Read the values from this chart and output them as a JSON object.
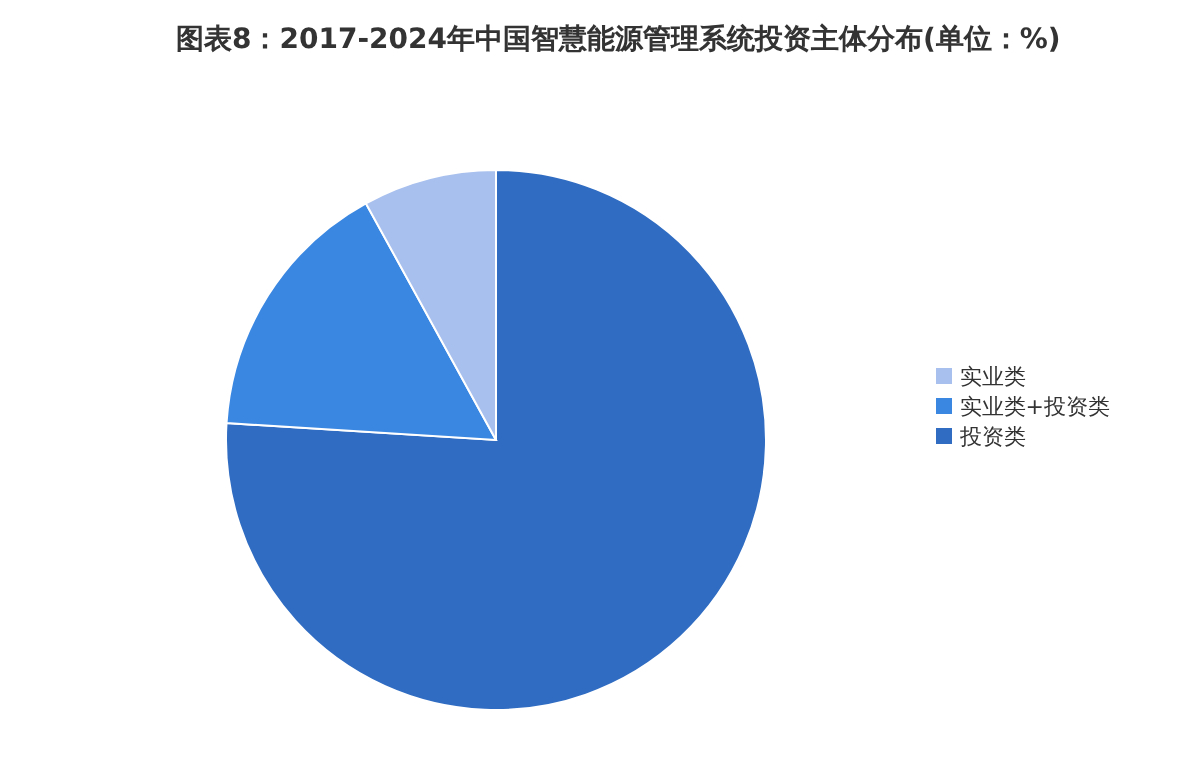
{
  "chart_data": {
    "type": "pie",
    "title": "图表8：2017-2024年中国智慧能源管理系统投资主体分布(单位：%)",
    "categories": [
      "投资类",
      "实业类+投资类",
      "实业类"
    ],
    "values": [
      76,
      16,
      8
    ],
    "colors": [
      "#2f6cc2",
      "#3a87e2",
      "#a8c0ee"
    ],
    "legend": "right"
  }
}
